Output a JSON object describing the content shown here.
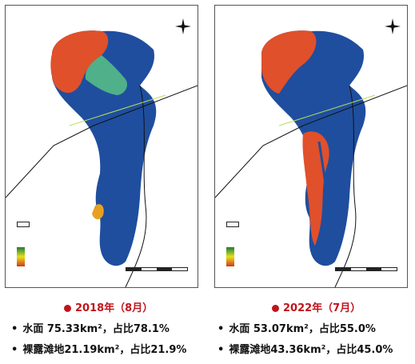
{
  "panels": [
    {
      "caption": "2018年（8月）",
      "stats": [
        "水面 75.33km²，占比78.1%",
        "裸露滩地21.19km²，占比21.9%"
      ],
      "legend": {
        "title": "",
        "boundary": "",
        "layer": "",
        "high": "",
        "low": ""
      },
      "scale_label": "",
      "top_coords": [
        "",
        "",
        "",
        ""
      ],
      "bottom_coords": [
        "",
        "",
        "",
        ""
      ],
      "left_coords": [
        "",
        "",
        "",
        "",
        "",
        ""
      ],
      "colors": {
        "water": "#1f4e9e",
        "bare": "#e0502a",
        "mid": "#4fb08a"
      }
    },
    {
      "caption": "2022年（7月）",
      "stats": [
        "水面 53.07km²，占比55.0%",
        "裸露滩地43.36km²，占比45.0%"
      ],
      "legend": {
        "title": "",
        "boundary": "",
        "layer": "",
        "high": "",
        "low": ""
      },
      "scale_label": "",
      "top_coords": [
        "",
        "",
        "",
        ""
      ],
      "bottom_coords": [
        "",
        "",
        "",
        ""
      ],
      "left_coords": [
        "",
        "",
        "",
        "",
        "",
        ""
      ],
      "colors": {
        "water": "#1f4e9e",
        "bare": "#e0502a",
        "mid": "#4fb08a"
      }
    }
  ],
  "icons": {
    "north_arrow": "compass-icon",
    "bullet": "bullet-icon"
  }
}
